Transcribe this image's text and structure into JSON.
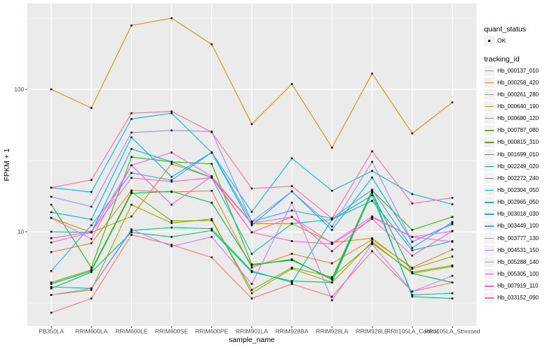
{
  "figure": {
    "background": "#FFFFFF",
    "panel_bg": "#EBEBEB",
    "grid_color": "#FFFFFF",
    "tick_label_color": "#4D4D4D",
    "axis_title_color": "#000000",
    "legend_key_bg": "#F2F2F2",
    "point_color": "#000000"
  },
  "legend": {
    "quant_status_title": "quant_status",
    "quant_status_items": [
      {
        "label": "OK",
        "marker": "black-point"
      }
    ],
    "tracking_title": "tracking_id"
  },
  "chart_data": {
    "type": "line",
    "title": "",
    "xlabel": "sample_name",
    "ylabel": "FPKM + 1",
    "y_scale": "log10",
    "y_ticks": [
      100,
      10
    ],
    "y_minor_ticks": [
      316.2,
      31.62,
      3.162
    ],
    "ylim": [
      2.2,
      400
    ],
    "grid": true,
    "legend_position": "right",
    "marker": "black-square",
    "categories": [
      "PB350LA",
      "RRIM600LA",
      "RRIM600LE",
      "RRIM600SE",
      "RRIM600PE",
      "RRIM901LA",
      "RRIM928BA",
      "RRIM928LA",
      "RRIM928LE",
      "RRII105LA_Control",
      "RRII105LA_Stressed"
    ],
    "series": [
      {
        "name": "Hb_000137_010",
        "color": "#F8766D",
        "values": [
          2.7,
          3.4,
          9.5,
          8.1,
          6.6,
          3.4,
          4.3,
          3.5,
          7.3,
          3.8,
          4.4
        ]
      },
      {
        "name": "Hb_000258_420",
        "color": "#EA8331",
        "values": [
          7.2,
          8.3,
          19.5,
          19.0,
          19.4,
          5.6,
          7.0,
          6.0,
          8.8,
          5.6,
          7.5
        ]
      },
      {
        "name": "Hb_000261_280",
        "color": "#D89000",
        "values": [
          100,
          74,
          281,
          316,
          207,
          57,
          109,
          39,
          129,
          49,
          81
        ]
      },
      {
        "name": "Hb_000640_190",
        "color": "#C09B00",
        "values": [
          12.5,
          9.9,
          12.8,
          30,
          24,
          11.4,
          11.4,
          8.4,
          9.0,
          5.5,
          6.7
        ]
      },
      {
        "name": "Hb_000680_120",
        "color": "#A3A500",
        "values": [
          3.6,
          3.9,
          15.5,
          11.5,
          12.3,
          3.7,
          5.5,
          4.4,
          8.5,
          5.1,
          5.7
        ]
      },
      {
        "name": "Hb_000787_080",
        "color": "#7CAE00",
        "values": [
          4.4,
          5.4,
          19.0,
          11.9,
          12.0,
          3.9,
          5.6,
          4.8,
          8.3,
          5.2,
          5.8
        ]
      },
      {
        "name": "Hb_000815_310",
        "color": "#39B600",
        "values": [
          15.5,
          5.6,
          33.5,
          31,
          30,
          5.9,
          6.3,
          4.7,
          19.5,
          10.3,
          12.7
        ]
      },
      {
        "name": "Hb_001699_010",
        "color": "#00BB4E",
        "values": [
          4.3,
          5.3,
          18.6,
          19.2,
          16,
          5.8,
          6.4,
          4.6,
          18.8,
          5.1,
          4.4
        ]
      },
      {
        "name": "Hb_002249_020",
        "color": "#00BF7D",
        "values": [
          4.0,
          5.2,
          9.9,
          9.2,
          10.2,
          5.2,
          4.5,
          4.4,
          19.0,
          3.5,
          3.4
        ]
      },
      {
        "name": "Hb_002272_240",
        "color": "#00C1A3",
        "values": [
          4.1,
          4.0,
          10.2,
          10.7,
          10.5,
          5.3,
          4.4,
          12.2,
          18.0,
          3.6,
          3.7
        ]
      },
      {
        "name": "Hb_002304_050",
        "color": "#00BFC4",
        "values": [
          10.0,
          9.9,
          38.2,
          31,
          24,
          7.0,
          11.4,
          12.2,
          16.5,
          7.4,
          8.6
        ]
      },
      {
        "name": "Hb_002965_050",
        "color": "#00BAE0",
        "values": [
          20.4,
          19.0,
          62,
          68,
          36,
          13.8,
          32.8,
          19.4,
          26.7,
          18.4,
          15.6
        ]
      },
      {
        "name": "Hb_003018_030",
        "color": "#00B0F6",
        "values": [
          13.7,
          12.2,
          46,
          24.3,
          36,
          11.1,
          19.2,
          10.3,
          24.0,
          8.5,
          11.3
        ]
      },
      {
        "name": "Hb_003449_100",
        "color": "#35A2FF",
        "values": [
          5.3,
          11.1,
          25.9,
          23,
          36,
          11.8,
          14.1,
          12.4,
          19.7,
          7.7,
          11.7
        ]
      },
      {
        "name": "Hb_003777_130",
        "color": "#9590FF",
        "values": [
          17.6,
          15.0,
          49.7,
          51.5,
          50.6,
          11.8,
          19.2,
          10.9,
          31,
          8.5,
          11.4
        ]
      },
      {
        "name": "Hb_004531_150",
        "color": "#C77CFF",
        "values": [
          3.6,
          4.0,
          10.4,
          7.9,
          9.2,
          4.3,
          16.0,
          3.3,
          8.2,
          3.8,
          4.9
        ]
      },
      {
        "name": "Hb_005288_140",
        "color": "#E76BF3",
        "values": [
          12.5,
          8.9,
          29.3,
          36,
          24.5,
          11.5,
          12.7,
          8.3,
          12.8,
          9.2,
          10.1
        ]
      },
      {
        "name": "Hb_005305_100",
        "color": "#FA62DB",
        "values": [
          8.4,
          9.9,
          29.3,
          15.5,
          24.5,
          9.9,
          8.6,
          8.2,
          12.3,
          6.8,
          10.1
        ]
      },
      {
        "name": "Hb_007919_110",
        "color": "#FF62BC",
        "values": [
          9.0,
          10.0,
          23.9,
          22.5,
          24,
          9.9,
          12.7,
          7.3,
          12.6,
          9.2,
          8.5
        ]
      },
      {
        "name": "Hb_033152_090",
        "color": "#FF6A98",
        "values": [
          20.4,
          23.1,
          68,
          70,
          50,
          20.1,
          20.9,
          12.4,
          36.7,
          15.8,
          17.3
        ]
      }
    ]
  }
}
